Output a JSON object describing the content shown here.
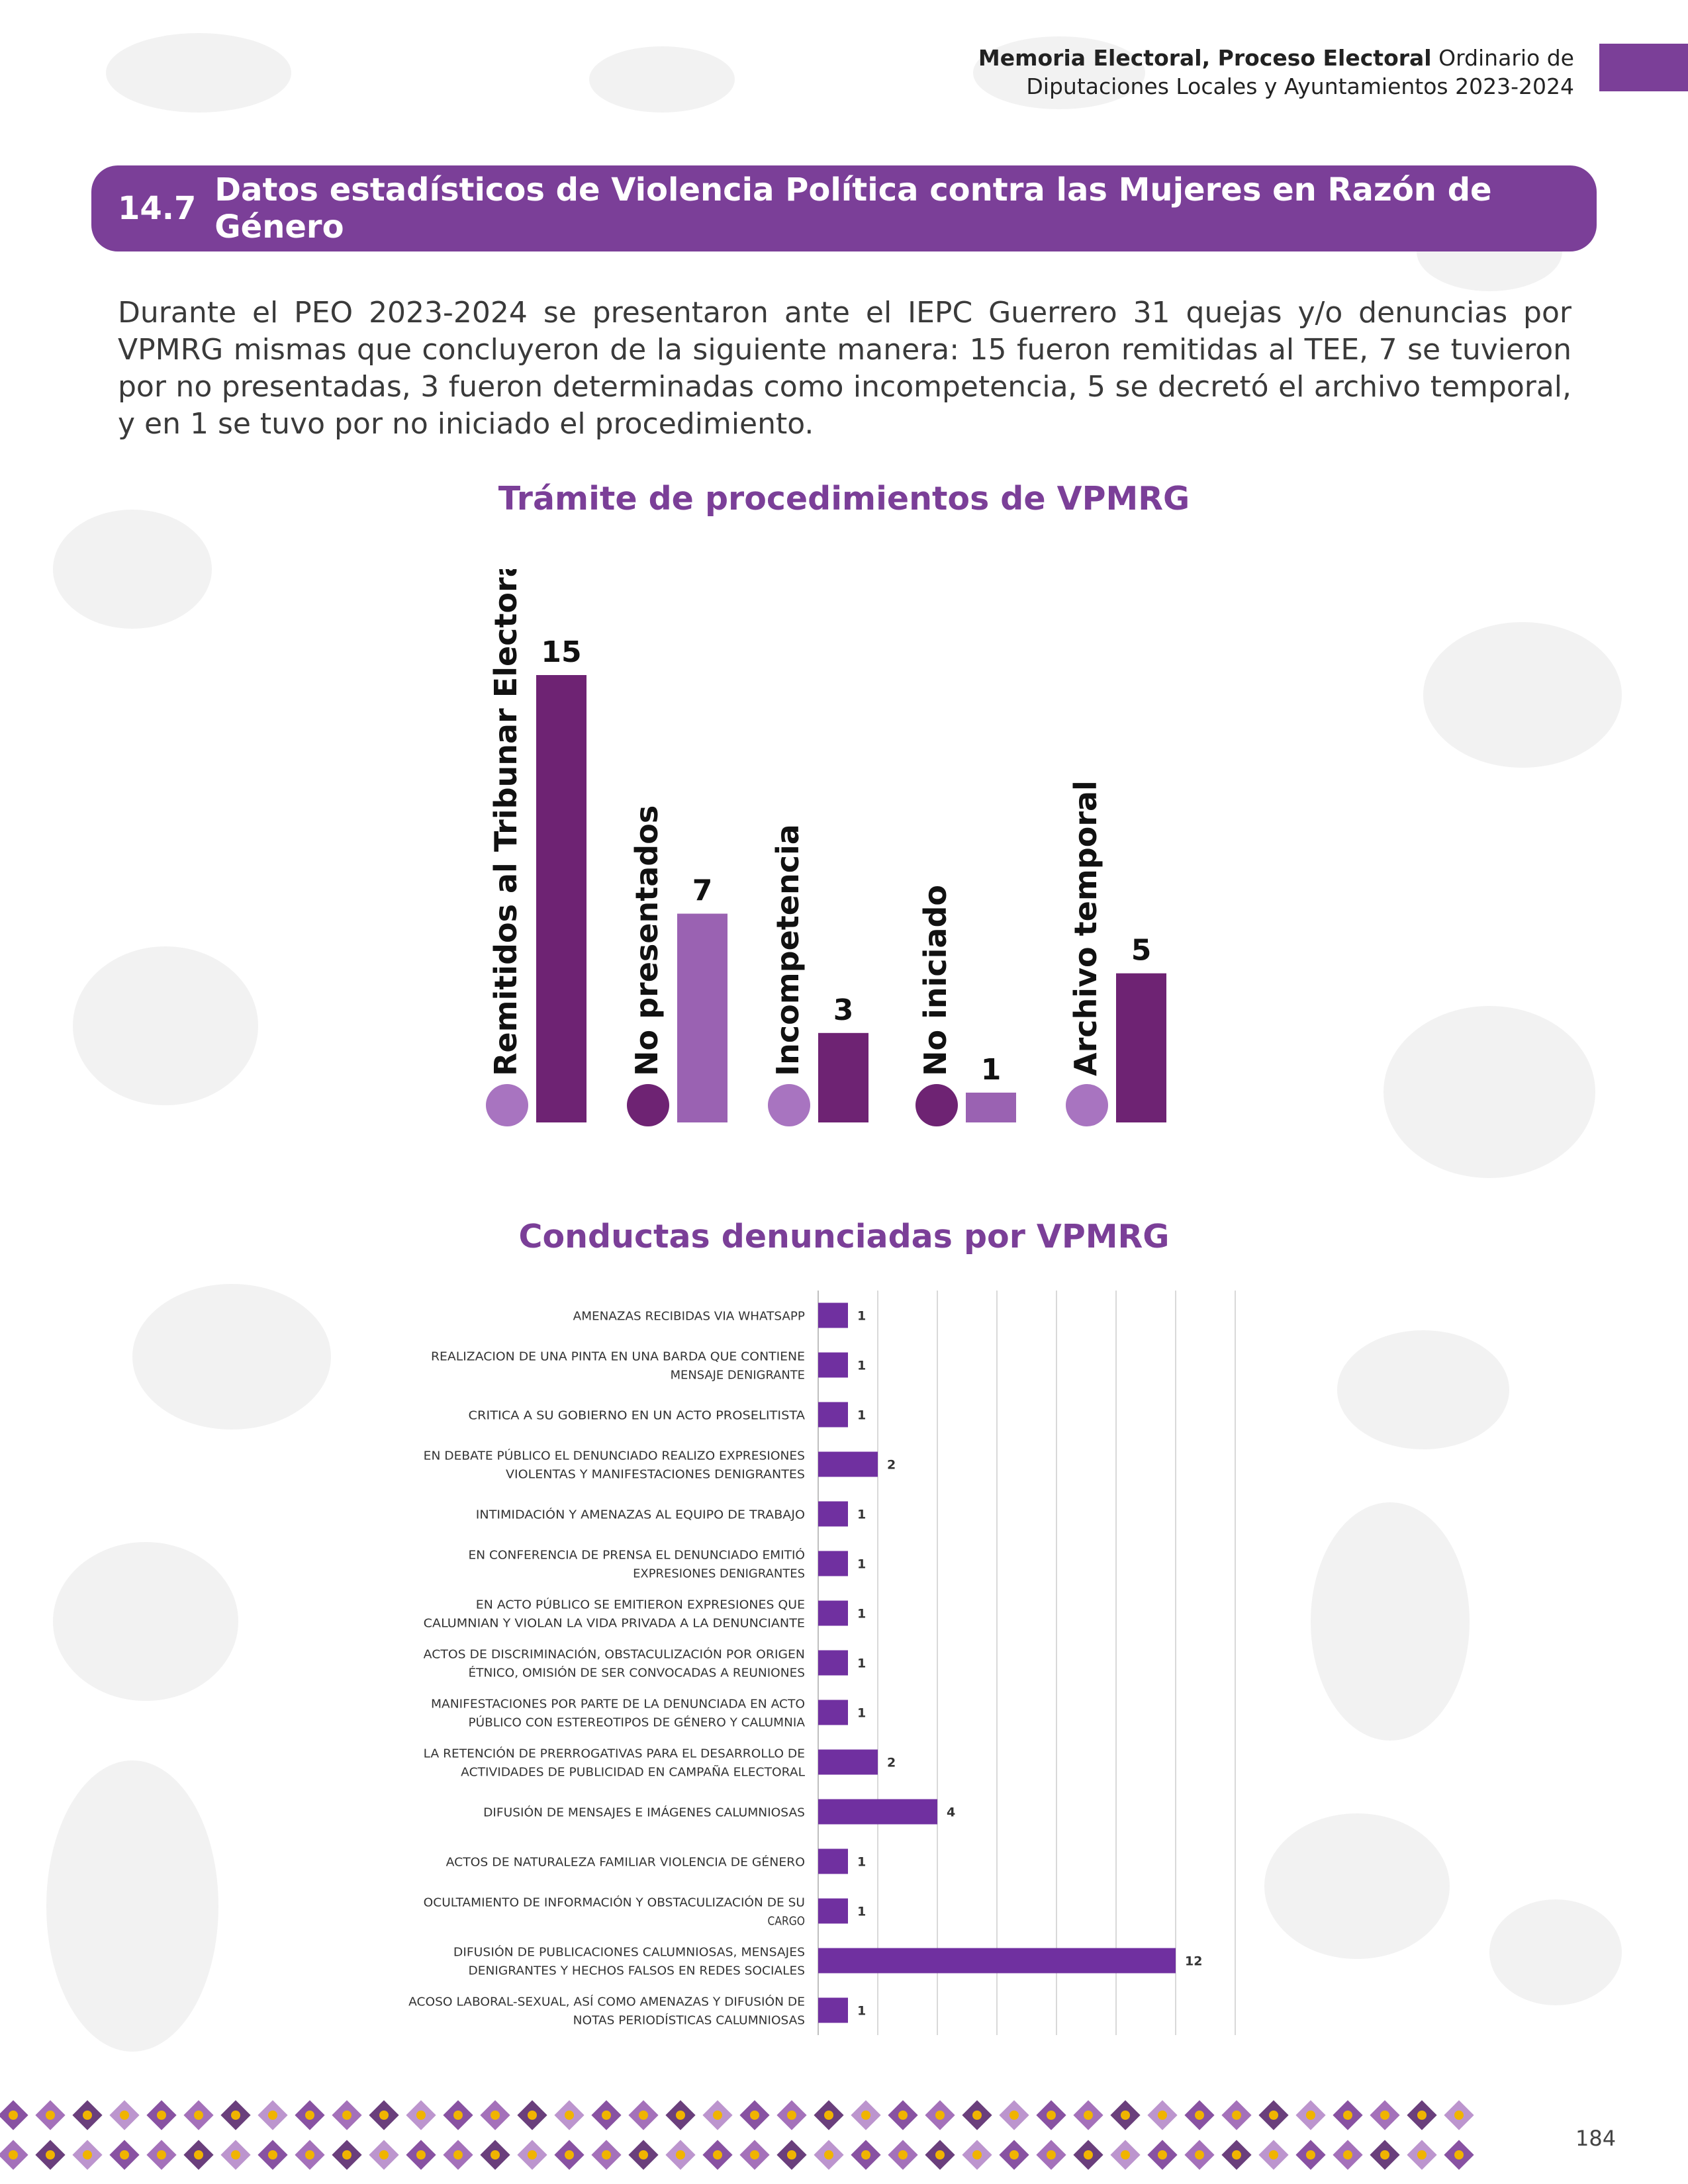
{
  "header": {
    "title_bold": "Memoria Electoral, Proceso Electoral",
    "title_rest": "Ordinario de",
    "title_line2": "Diputaciones Locales y Ayuntamientos 2023-2024"
  },
  "section": {
    "number": "14.7",
    "title": "Datos estadísticos de Violencia Política contra las Mujeres en Razón de Género"
  },
  "intro": "Durante el PEO 2023-2024 se presentaron ante el IEPC Guerrero 31 quejas y/o denuncias por VPMRG mismas que concluyeron de la siguiente manera: 15 fueron remitidas al TEE, 7 se tuvieron por no presentadas, 3 fueron determinadas como incompetencia, 5 se decretó el archivo temporal, y en 1 se tuvo por no iniciado el procedimiento.",
  "page_number": "184",
  "colors": {
    "accent": "#7b3f98",
    "bar_dark": "#6e2373",
    "bar_light": "#9a62b2",
    "dot_light": "#a874c0",
    "bar2": "#7030a0"
  },
  "chart_data": [
    {
      "type": "bar",
      "title": "Trámite de procedimientos de VPMRG",
      "categories": [
        "Remitidos al Tribunar Electoral",
        "No presentados",
        "Incompetencia",
        "No iniciado",
        "Archivo temporal"
      ],
      "values": [
        15,
        7,
        3,
        1,
        5
      ],
      "bar_colors": [
        "#6e2373",
        "#9a62b2",
        "#6e2373",
        "#9a62b2",
        "#6e2373"
      ],
      "dot_colors": [
        "#a874c0",
        "#6e2373",
        "#a874c0",
        "#6e2373",
        "#a874c0"
      ],
      "ylim": [
        0,
        15
      ],
      "grid": false,
      "orientation": "vertical"
    },
    {
      "type": "bar",
      "orientation": "horizontal",
      "title": "Conductas denunciadas por VPMRG",
      "categories": [
        [
          "AMENAZAS RECIBIDAS VIA WHATSAPP"
        ],
        [
          "REALIZACION DE UNA PINTA EN UNA BARDA QUE CONTIENE",
          "MENSAJE DENIGRANTE"
        ],
        [
          "CRITICA A SU GOBIERNO EN UN ACTO PROSELITISTA"
        ],
        [
          "EN DEBATE PÚBLICO EL DENUNCIADO REALIZO EXPRESIONES",
          "VIOLENTAS  Y MANIFESTACIONES DENIGRANTES"
        ],
        [
          "INTIMIDACIÓN Y AMENAZAS AL EQUIPO DE TRABAJO"
        ],
        [
          "EN CONFERENCIA DE PRENSA EL DENUNCIADO EMITIÓ",
          "EXPRESIONES DENIGRANTES"
        ],
        [
          "EN ACTO PÚBLICO SE EMITIERON EXPRESIONES QUE",
          "CALUMNIAN Y VIOLAN LA VIDA PRIVADA A LA DENUNCIANTE"
        ],
        [
          "ACTOS DE DISCRIMINACIÓN, OBSTACULIZACIÓN POR ORIGEN",
          "ÉTNICO, OMISIÓN DE SER CONVOCADAS A REUNIONES"
        ],
        [
          "MANIFESTACIONES POR PARTE DE LA DENUNCIADA EN ACTO",
          "PÚBLICO CON ESTEREOTIPOS DE GÉNERO Y CALUMNIA"
        ],
        [
          "LA RETENCIÓN DE PRERROGATIVAS PARA EL DESARROLLO DE",
          "ACTIVIDADES DE PUBLICIDAD EN CAMPAÑA ELECTORAL"
        ],
        [
          "DIFUSIÓN DE MENSAJES E IMÁGENES CALUMNIOSAS"
        ],
        [
          "ACTOS DE NATURALEZA FAMILIAR VIOLENCIA DE GÉNERO"
        ],
        [
          "OCULTAMIENTO DE INFORMACIÓN Y OBSTACULIZACIÓN DE SU",
          "CARGO"
        ],
        [
          "DIFUSIÓN DE PUBLICACIONES CALUMNIOSAS, MENSAJES",
          "DENIGRANTES Y HECHOS FALSOS EN REDES SOCIALES"
        ],
        [
          "ACOSO LABORAL-SEXUAL, ASÍ COMO AMENAZAS Y DIFUSIÓN DE",
          "NOTAS PERIODÍSTICAS CALUMNIOSAS"
        ]
      ],
      "values": [
        1,
        1,
        1,
        2,
        1,
        1,
        1,
        1,
        1,
        2,
        4,
        1,
        1,
        12,
        1
      ],
      "xlim": [
        0,
        14
      ],
      "xticks": [
        0,
        2,
        4,
        6,
        8,
        10,
        12,
        14
      ],
      "grid": true
    }
  ]
}
